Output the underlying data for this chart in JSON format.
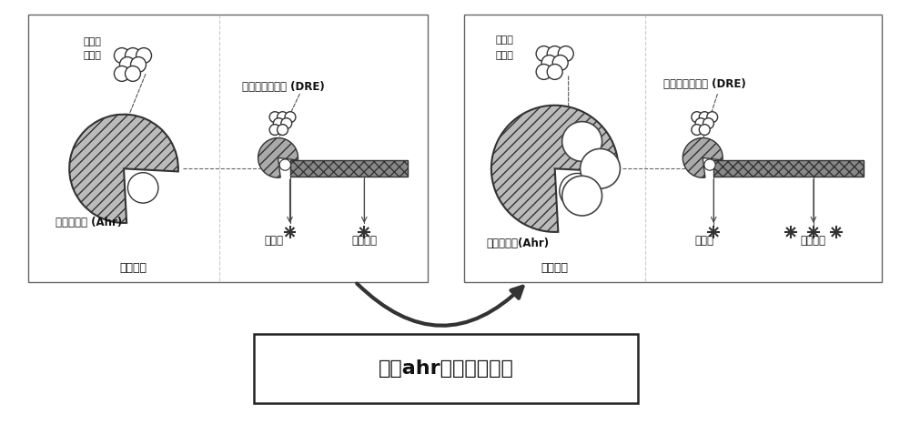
{
  "fig_width": 10.0,
  "fig_height": 4.78,
  "bg_color": "#ffffff",
  "panel_bg": "#ffffff",
  "panel_border_color": "#888888",
  "bottom_text": "构建ahr过表达细胞系",
  "panel1_labels": {
    "dioxin_molecules": "二恶英\n类物质",
    "dre_label": "二恶英响应元件（DRE）",
    "receptor_label": "芳香烃受体（Ahr）",
    "promoter_label": "启动子",
    "reporter_label": "报告基因",
    "membrane_label": "细胞核膜"
  },
  "panel2_labels": {
    "dioxin_molecules": "二恶英\n类物质",
    "dre_label": "二恶英响应元件（DRE）",
    "receptor_label": "芳香烃受体（Ahr）",
    "promoter_label": "启动子",
    "reporter_label": "报告基因",
    "membrane_label": "细胞核膜"
  }
}
